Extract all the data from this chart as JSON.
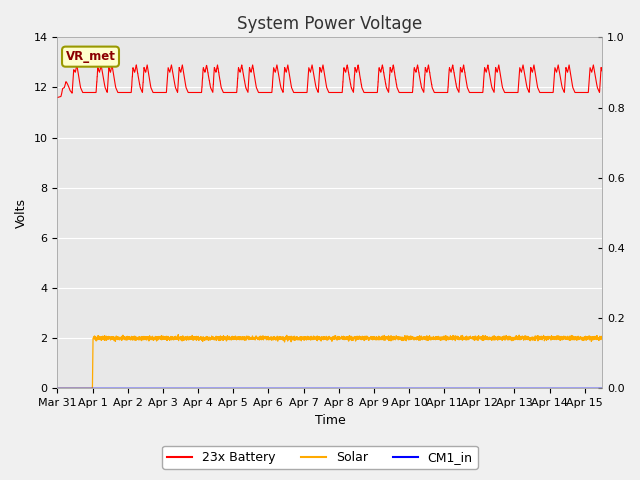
{
  "title": "System Power Voltage",
  "xlabel": "Time",
  "ylabel": "Volts",
  "plot_bg_color": "#e8e8e8",
  "fig_bg_color": "#f0f0f0",
  "ylim_left": [
    0,
    14
  ],
  "ylim_right": [
    0.0,
    1.0
  ],
  "x_tick_labels": [
    "Mar 31",
    "Apr 1",
    "Apr 2",
    "Apr 3",
    "Apr 4",
    "Apr 5",
    "Apr 6",
    "Apr 7",
    "Apr 8",
    "Apr 9",
    "Apr 10",
    "Apr 11",
    "Apr 12",
    "Apr 13",
    "Apr 14",
    "Apr 15"
  ],
  "annotation_text": "VR_met",
  "annotation_bg": "#ffffcc",
  "annotation_edge": "#999900",
  "battery_color": "#ff0000",
  "solar_color": "#ffaa00",
  "cm1_color": "#0000ff",
  "legend_labels": [
    "23x Battery",
    "Solar",
    "CM1_in"
  ],
  "grid_color": "#ffffff",
  "title_fontsize": 12,
  "tick_fontsize": 8,
  "left_yticks": [
    0,
    2,
    4,
    6,
    8,
    10,
    12,
    14
  ],
  "right_yticks": [
    0.0,
    0.2,
    0.4,
    0.6,
    0.8,
    1.0
  ]
}
